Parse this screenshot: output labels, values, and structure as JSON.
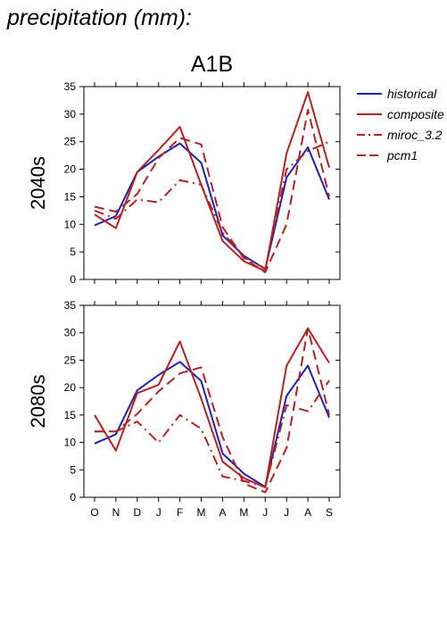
{
  "page": {
    "title": "precipitation (mm):"
  },
  "chart_data": {
    "type": "line",
    "title": "A1B",
    "categories": [
      "O",
      "N",
      "D",
      "J",
      "F",
      "M",
      "A",
      "M",
      "J",
      "J",
      "A",
      "S"
    ],
    "ylim": [
      0,
      35
    ],
    "yticks": [
      0,
      5,
      10,
      15,
      20,
      25,
      30,
      35
    ],
    "grid": false,
    "legend_position": "top-right",
    "legend": [
      {
        "name": "historical",
        "color": "#1f1fb4",
        "style": "solid"
      },
      {
        "name": "composite",
        "color": "#b22222",
        "style": "solid"
      },
      {
        "name": "miroc_3.2",
        "color": "#b22222",
        "style": "dashdot"
      },
      {
        "name": "pcm1",
        "color": "#b22222",
        "style": "dashed"
      }
    ],
    "panels": [
      {
        "label": "2040s",
        "series": [
          {
            "name": "historical",
            "values": [
              9.8,
              11.5,
              19.5,
              22.3,
              24.7,
              21.2,
              8.0,
              4.3,
              1.9,
              18.5,
              24.0,
              14.5
            ]
          },
          {
            "name": "composite",
            "values": [
              11.8,
              9.3,
              19.5,
              23.5,
              27.7,
              17.2,
              7.0,
              3.3,
              1.5,
              22.9,
              34.0,
              20.3
            ]
          },
          {
            "name": "miroc_3.2",
            "values": [
              12.5,
              11.0,
              14.5,
              14.0,
              18.0,
              17.2,
              8.5,
              4.0,
              2.0,
              20.0,
              23.3,
              25.0
            ]
          },
          {
            "name": "pcm1",
            "values": [
              13.2,
              12.3,
              15.5,
              22.0,
              25.7,
              24.5,
              9.5,
              3.8,
              1.3,
              10.0,
              30.8,
              15.0
            ]
          }
        ]
      },
      {
        "label": "2080s",
        "series": [
          {
            "name": "historical",
            "values": [
              9.8,
              11.5,
              19.5,
              22.3,
              24.7,
              21.2,
              8.0,
              4.3,
              1.9,
              18.5,
              24.0,
              14.5
            ]
          },
          {
            "name": "composite",
            "values": [
              15.0,
              8.5,
              19.0,
              20.5,
              28.4,
              18.0,
              6.5,
              3.5,
              1.8,
              24.0,
              30.8,
              24.5
            ]
          },
          {
            "name": "miroc_3.2",
            "values": [
              12.0,
              12.0,
              13.8,
              10.0,
              15.0,
              12.5,
              3.8,
              3.0,
              1.9,
              16.8,
              15.7,
              21.3
            ]
          },
          {
            "name": "pcm1",
            "values": [
              12.0,
              12.0,
              15.2,
              19.3,
              22.6,
              23.7,
              11.0,
              2.5,
              0.9,
              9.0,
              30.8,
              15.0
            ]
          }
        ]
      }
    ]
  }
}
